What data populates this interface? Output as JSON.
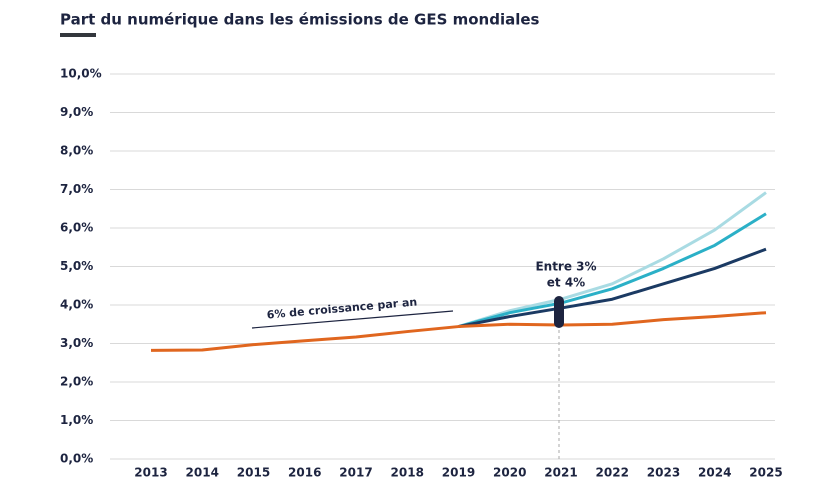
{
  "chart_data": {
    "type": "line",
    "title": "Part du numérique dans les émissions de GES mondiales",
    "categories": [
      "2013",
      "2014",
      "2015",
      "2016",
      "2017",
      "2018",
      "2019",
      "2020",
      "2021",
      "2022",
      "2023",
      "2024",
      "2025"
    ],
    "series": [
      {
        "color": "#a9dbe3",
        "values": [
          null,
          null,
          null,
          null,
          null,
          null,
          3.44,
          3.85,
          4.15,
          4.55,
          5.2,
          5.95,
          6.92
        ]
      },
      {
        "color": "#2bb0c7",
        "values": [
          null,
          null,
          null,
          null,
          null,
          null,
          3.44,
          3.8,
          4.05,
          4.42,
          4.95,
          5.55,
          6.37
        ]
      },
      {
        "color": "#1b3a63",
        "values": [
          null,
          null,
          null,
          null,
          null,
          null,
          3.44,
          3.7,
          3.92,
          4.15,
          4.55,
          4.95,
          5.45
        ]
      },
      {
        "color": "#e0661f",
        "values": [
          2.82,
          2.83,
          2.97,
          3.07,
          3.17,
          3.31,
          3.44,
          3.5,
          3.48,
          3.5,
          3.62,
          3.7,
          3.8
        ]
      }
    ],
    "ylim": [
      0,
      10
    ],
    "yticks": [
      {
        "value": 0,
        "label": "0,0%"
      },
      {
        "value": 1,
        "label": "1,0%"
      },
      {
        "value": 2,
        "label": "2,0%"
      },
      {
        "value": 3,
        "label": "3,0%"
      },
      {
        "value": 4,
        "label": "4,0%"
      },
      {
        "value": 5,
        "label": "5,0%"
      },
      {
        "value": 6,
        "label": "6,0%"
      },
      {
        "value": 7,
        "label": "7,0%"
      },
      {
        "value": 8,
        "label": "8,0%"
      },
      {
        "value": 9,
        "label": "9,0%"
      },
      {
        "value": 10,
        "label": "10,0%"
      }
    ],
    "grid": true,
    "annotations": [
      "6% de croissance par an",
      "Entre 3%",
      "et 4%"
    ]
  }
}
